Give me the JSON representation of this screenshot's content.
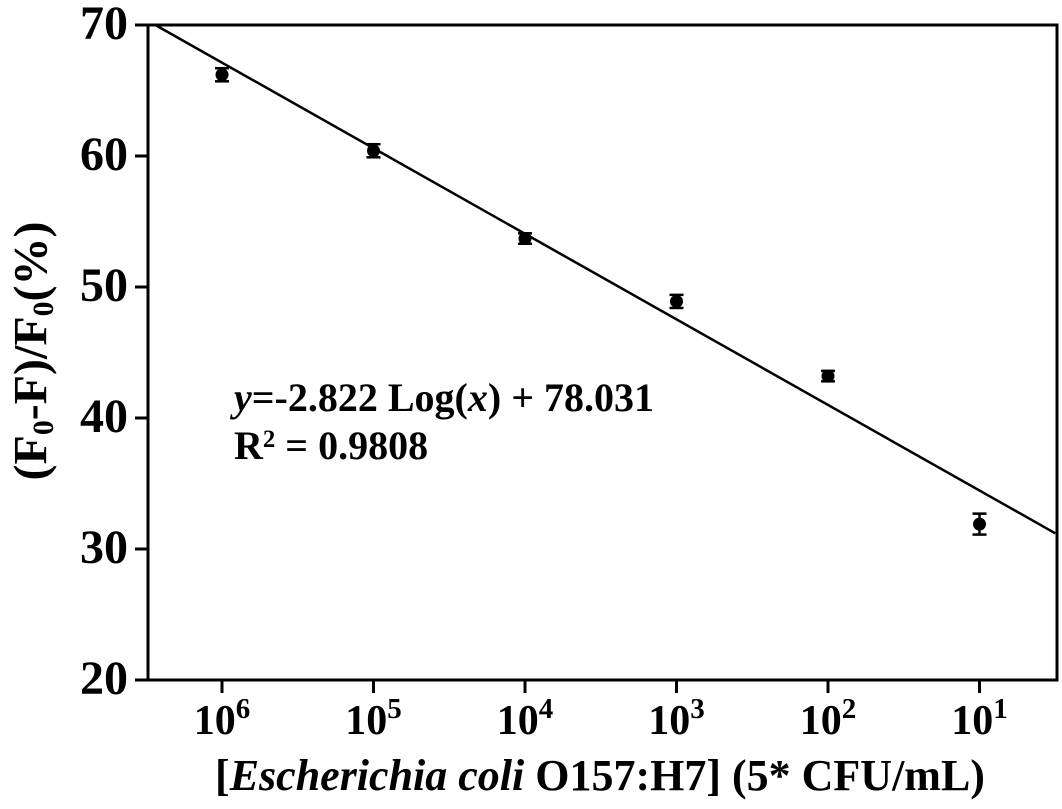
{
  "figure": {
    "background": "#ffffff",
    "ink": "#000000"
  },
  "chart_data": {
    "type": "scatter",
    "title": "",
    "legend": null,
    "grid": false,
    "x_axis": {
      "scale": "log10_reversed",
      "tick_base": "10",
      "tick_exponents": [
        6,
        5,
        4,
        3,
        2,
        1
      ],
      "label_plain": "[Escherichia coli O157:H7] (5* CFU/mL)"
    },
    "y_axis": {
      "ticks": [
        70,
        60,
        50,
        40,
        30,
        20
      ],
      "min": 20,
      "max": 70,
      "label_plain": "(F0-F)/F0(%)"
    },
    "series": [
      {
        "name": "E. coli O157:H7 fluorescence quenching",
        "points": [
          {
            "x": 1000000,
            "exp": 6,
            "y": 66.2,
            "err": 0.5
          },
          {
            "x": 100000,
            "exp": 5,
            "y": 60.4,
            "err": 0.5
          },
          {
            "x": 10000,
            "exp": 4,
            "y": 53.7,
            "err": 0.4
          },
          {
            "x": 1000,
            "exp": 3,
            "y": 48.9,
            "err": 0.5
          },
          {
            "x": 100,
            "exp": 2,
            "y": 43.2,
            "err": 0.4
          },
          {
            "x": 10,
            "exp": 1,
            "y": 31.9,
            "err": 0.8
          }
        ]
      }
    ],
    "trendline": {
      "exp_start": 6.44,
      "y_start": 70.0,
      "exp_end": 0.5,
      "y_end": 31.2
    },
    "annotation": {
      "equation": "y=-2.822 Log(x) + 78.031",
      "r_squared": "R2 = 0.9808",
      "equation_rich": [
        {
          "t": "y",
          "s": "i"
        },
        {
          "t": "=-2.822 Log("
        },
        {
          "t": "x",
          "s": "i"
        },
        {
          "t": ") + 78.031"
        }
      ],
      "r2_rich": [
        {
          "t": "R"
        },
        {
          "t": "2",
          "s": "sup"
        },
        {
          "t": " = 0.9808"
        }
      ]
    },
    "xlabel_rich": [
      {
        "t": "["
      },
      {
        "t": "Escherichia coli",
        "s": "i"
      },
      {
        "t": " O157:H7] (5* CFU/mL)"
      }
    ],
    "ylabel_rich": [
      {
        "t": "(F"
      },
      {
        "t": "0",
        "s": "sub"
      },
      {
        "t": "-F)/F"
      },
      {
        "t": "0",
        "s": "sub"
      },
      {
        "t": "(%)"
      }
    ]
  }
}
